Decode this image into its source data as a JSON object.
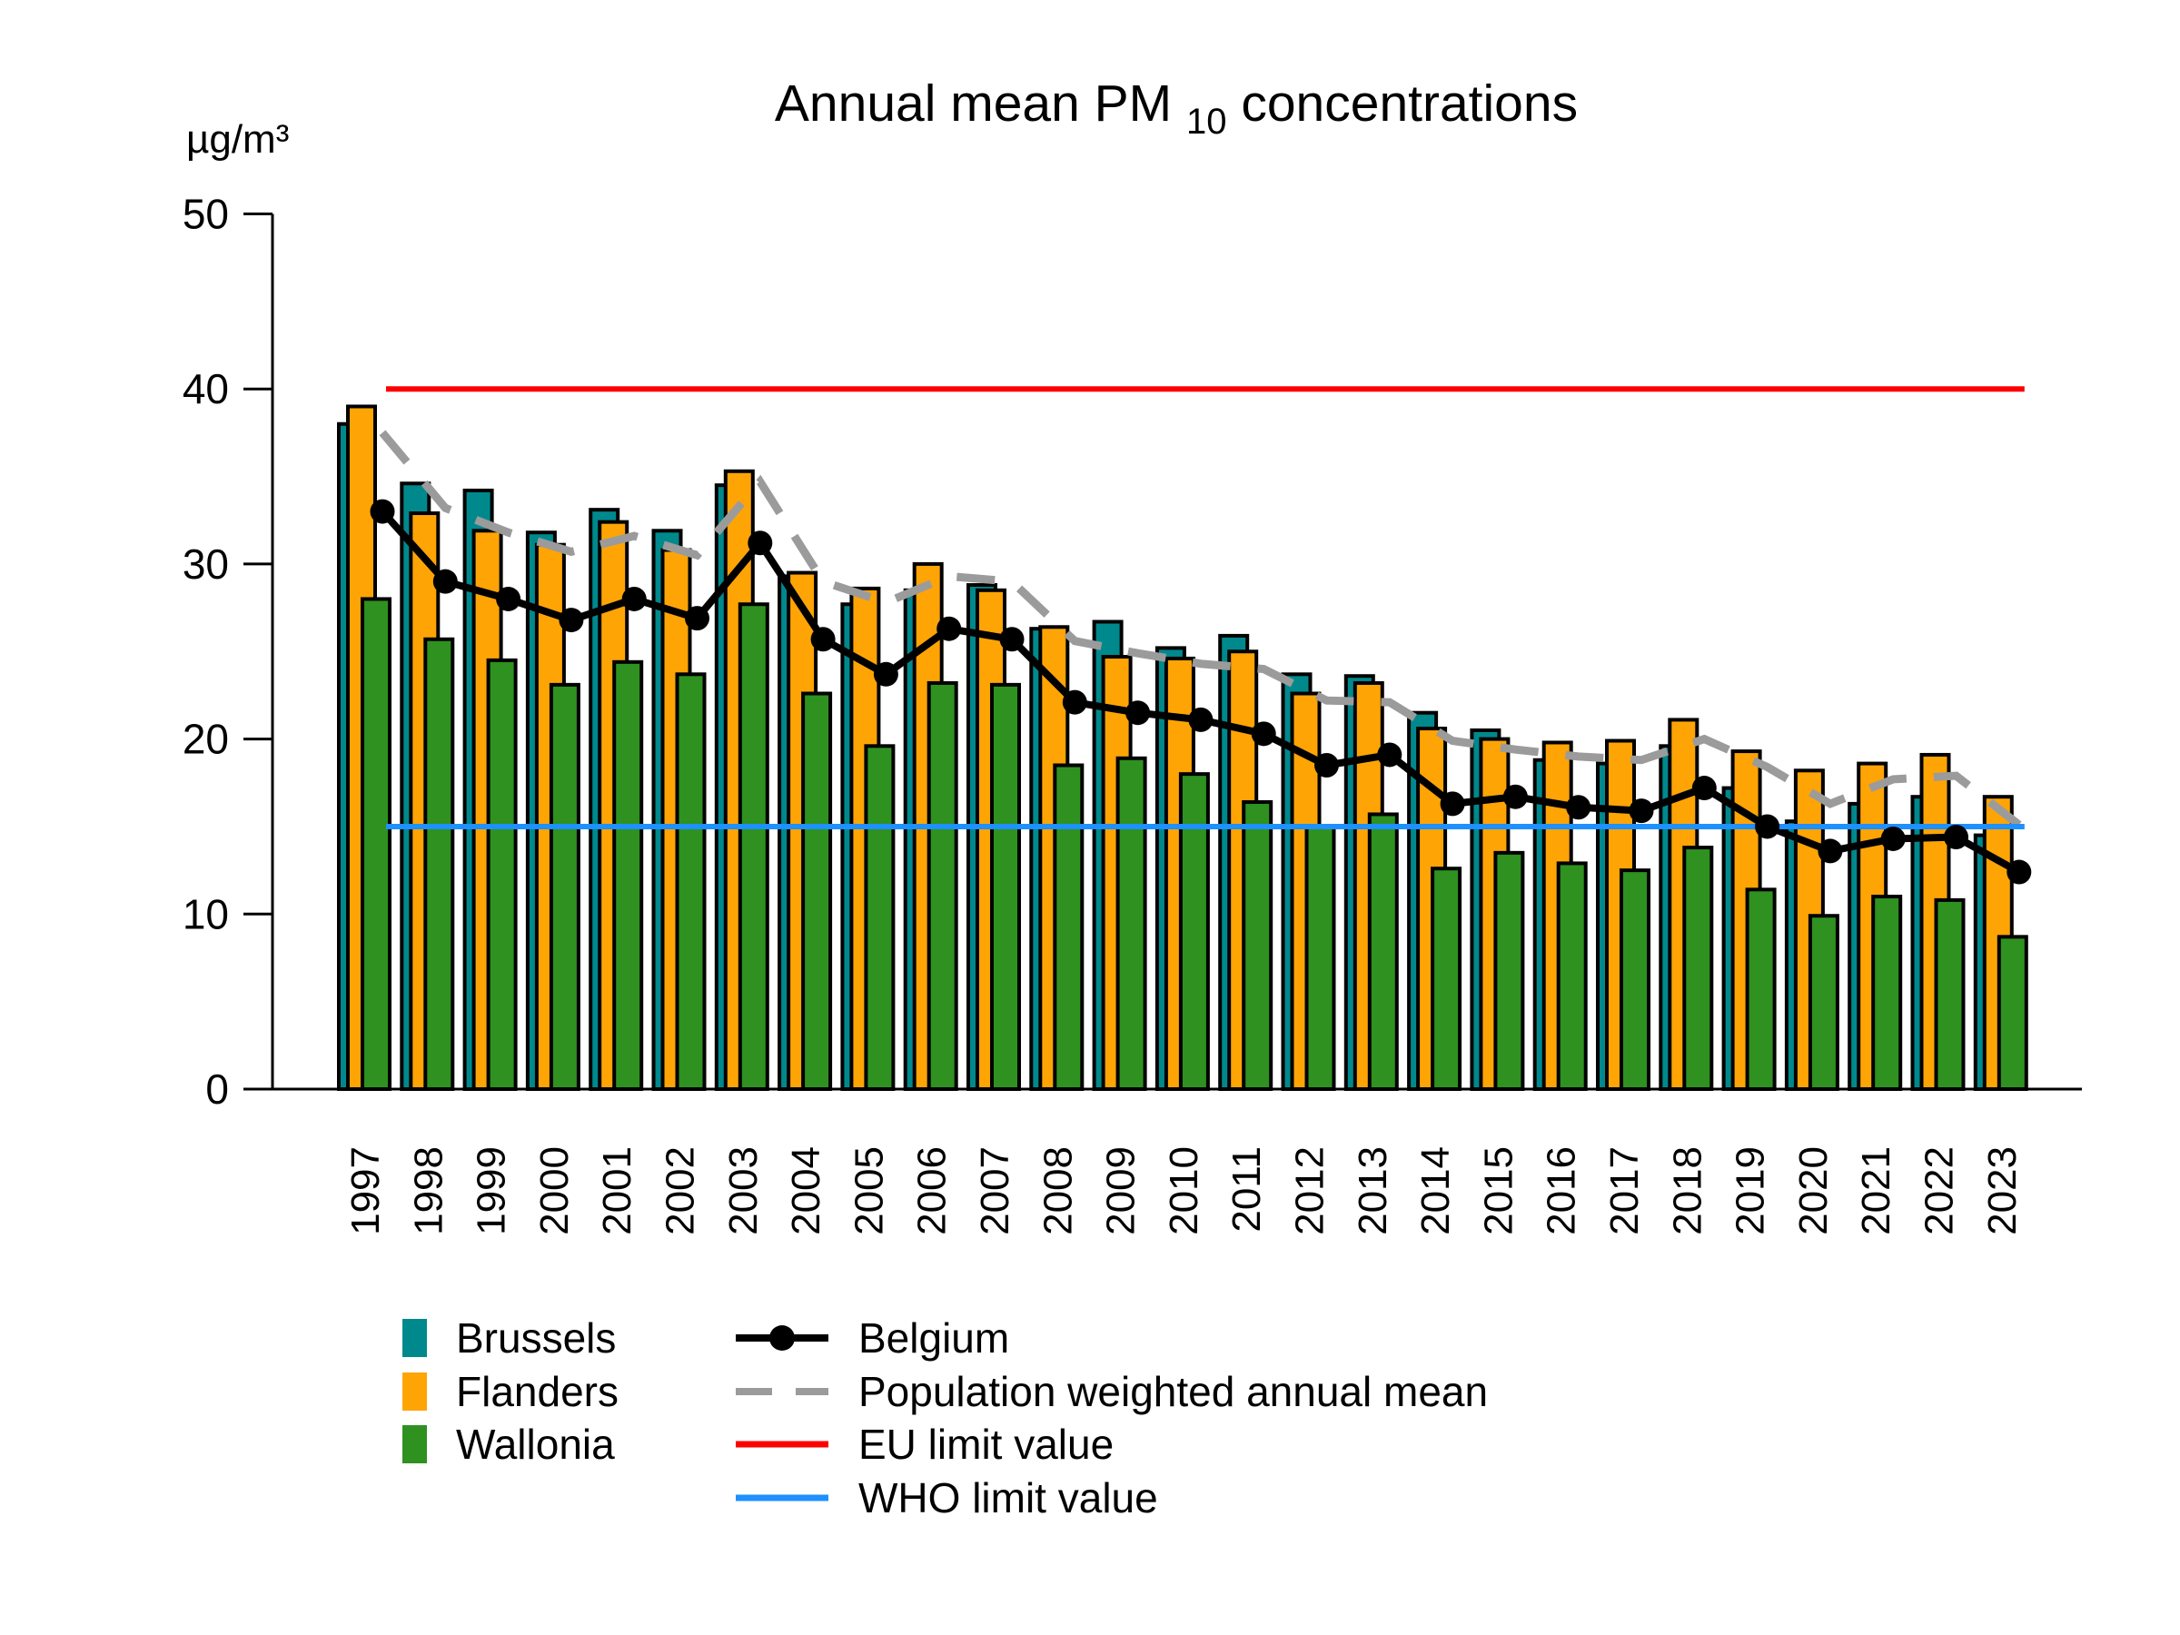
{
  "title": {
    "prefix": "Annual mean PM",
    "subscript": "10",
    "suffix": " concentrations"
  },
  "y_axis": {
    "unit_label": "µg/m³",
    "ticks": [
      0,
      10,
      20,
      30,
      40,
      50
    ],
    "max": 50
  },
  "colors": {
    "brussels": "#00898D",
    "flanders": "#FFA405",
    "wallonia": "#2E9120",
    "belgium": "#000000",
    "pop_weighted": "#9B9B9B",
    "eu_limit": "#FF0000",
    "who_limit": "#1E90FF",
    "bar_border": "#000000",
    "axis": "#000000"
  },
  "legend": {
    "regions": [
      {
        "label": "Brussels",
        "color_key": "brussels"
      },
      {
        "label": "Flanders",
        "color_key": "flanders"
      },
      {
        "label": "Wallonia",
        "color_key": "wallonia"
      }
    ],
    "lines": [
      {
        "label": "Belgium",
        "style": "solid-dot",
        "color_key": "belgium"
      },
      {
        "label": "Population weighted annual mean",
        "style": "dashed",
        "color_key": "pop_weighted"
      },
      {
        "label": "EU limit value",
        "style": "solid",
        "color_key": "eu_limit"
      },
      {
        "label": "WHO limit value",
        "style": "solid",
        "color_key": "who_limit"
      }
    ]
  },
  "chart_data": {
    "type": "bar",
    "title": "Annual mean PM10 concentrations",
    "ylabel": "µg/m³",
    "ylim": [
      0,
      50
    ],
    "grid": false,
    "legend_position": "bottom-left",
    "categories": [
      "1997",
      "1998",
      "1999",
      "2000",
      "2001",
      "2002",
      "2003",
      "2004",
      "2005",
      "2006",
      "2007",
      "2008",
      "2009",
      "2010",
      "2011",
      "2012",
      "2013",
      "2014",
      "2015",
      "2016",
      "2017",
      "2018",
      "2019",
      "2020",
      "2021",
      "2022",
      "2023"
    ],
    "series": [
      {
        "name": "Brussels",
        "color_key": "brussels",
        "values": [
          38.0,
          34.6,
          34.2,
          31.8,
          33.1,
          31.9,
          34.5,
          29.3,
          27.7,
          28.5,
          28.8,
          26.3,
          26.7,
          25.2,
          25.9,
          23.7,
          23.6,
          21.5,
          20.5,
          18.8,
          18.6,
          19.6,
          17.2,
          15.3,
          16.3,
          16.7,
          14.5
        ]
      },
      {
        "name": "Flanders",
        "color_key": "flanders",
        "values": [
          39.0,
          32.9,
          31.9,
          31.1,
          32.4,
          30.8,
          35.3,
          29.5,
          28.6,
          30.0,
          28.5,
          26.4,
          24.7,
          24.6,
          25.0,
          22.6,
          23.2,
          20.6,
          20.0,
          19.8,
          19.9,
          21.1,
          19.3,
          18.2,
          18.6,
          19.1,
          16.7
        ]
      },
      {
        "name": "Wallonia",
        "color_key": "wallonia",
        "values": [
          28.0,
          25.7,
          24.5,
          23.1,
          24.4,
          23.7,
          27.7,
          22.6,
          19.6,
          23.2,
          23.1,
          18.5,
          18.9,
          18.0,
          16.4,
          15.0,
          15.7,
          12.6,
          13.5,
          12.9,
          12.5,
          13.8,
          11.4,
          9.9,
          11.0,
          10.8,
          8.7
        ]
      }
    ],
    "lines": [
      {
        "name": "Belgium",
        "color_key": "belgium",
        "marker": "circle",
        "values": [
          33.0,
          29.0,
          28.0,
          26.8,
          28.0,
          26.9,
          31.2,
          25.7,
          23.7,
          26.3,
          25.7,
          22.1,
          21.5,
          21.1,
          20.3,
          18.5,
          19.1,
          16.3,
          16.7,
          16.1,
          15.9,
          17.2,
          15.0,
          13.6,
          14.3,
          14.4,
          12.4
        ]
      },
      {
        "name": "Population weighted annual mean",
        "color_key": "pop_weighted",
        "dashed": true,
        "values": [
          37.5,
          33.2,
          31.8,
          30.7,
          31.6,
          30.5,
          34.7,
          29.0,
          27.8,
          29.3,
          29.0,
          25.6,
          24.9,
          24.3,
          24.0,
          22.2,
          22.1,
          19.9,
          19.4,
          19.0,
          18.8,
          20.0,
          18.4,
          16.3,
          17.7,
          17.9,
          15.1
        ]
      }
    ],
    "limit_lines": [
      {
        "name": "EU limit value",
        "value": 40,
        "color_key": "eu_limit"
      },
      {
        "name": "WHO limit value",
        "value": 15,
        "color_key": "who_limit"
      }
    ]
  }
}
